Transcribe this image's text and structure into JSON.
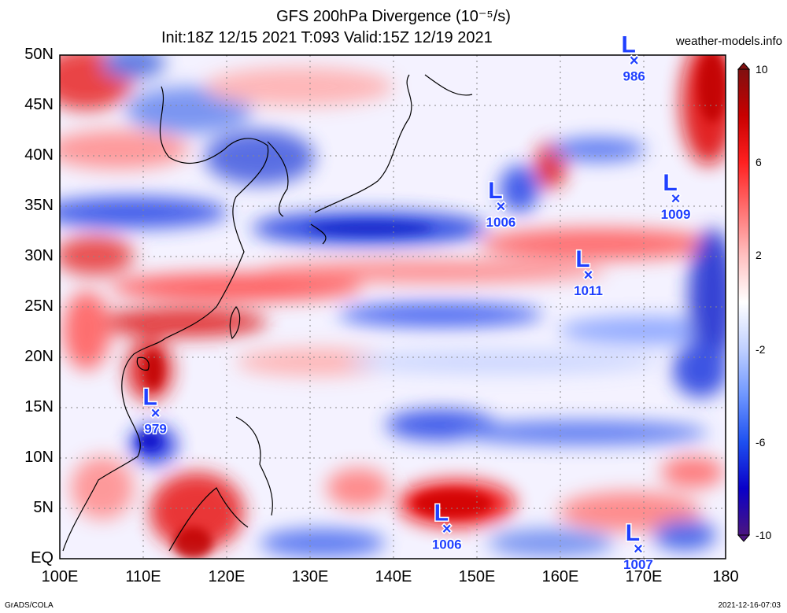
{
  "header": {
    "title": "GFS 200hPa Divergence (10⁻⁵/s)",
    "subtitle": "Init:18Z 12/15 2021 T:093 Valid:15Z 12/19 2021",
    "site": "weather-models.info"
  },
  "axes": {
    "y_labels": [
      "50N",
      "45N",
      "40N",
      "35N",
      "30N",
      "25N",
      "20N",
      "15N",
      "10N",
      "5N",
      "EQ"
    ],
    "x_labels": [
      "100E",
      "110E",
      "120E",
      "130E",
      "140E",
      "150E",
      "160E",
      "170E",
      "180"
    ]
  },
  "colorbar": {
    "labels": [
      "10",
      "6",
      "2",
      "-2",
      "-6",
      "-10"
    ],
    "colors": [
      "#4b1580",
      "#0a00c8",
      "#1e50f0",
      "#6e96ff",
      "#c0d0ff",
      "#ffffff",
      "#ffc0c0",
      "#ff7070",
      "#ff2020",
      "#c80000",
      "#801010"
    ]
  },
  "pressure_centers": [
    {
      "letter": "L",
      "value": "986",
      "lon": 169.0,
      "lat": 49.5
    },
    {
      "letter": "L",
      "value": "1006",
      "lon": 153.0,
      "lat": 35.0
    },
    {
      "letter": "L",
      "value": "1009",
      "lon": 174.0,
      "lat": 35.8
    },
    {
      "letter": "L",
      "value": "1011",
      "lon": 163.5,
      "lat": 28.2
    },
    {
      "letter": "L",
      "value": "979",
      "lon": 111.5,
      "lat": 14.5
    },
    {
      "letter": "L",
      "value": "1006",
      "lon": 146.5,
      "lat": 3.0
    },
    {
      "letter": "L",
      "value": "1007",
      "lon": 169.5,
      "lat": 1.0
    }
  ],
  "footer": {
    "left": "GrADS/COLA",
    "right": "2021-12-16-07:03"
  }
}
